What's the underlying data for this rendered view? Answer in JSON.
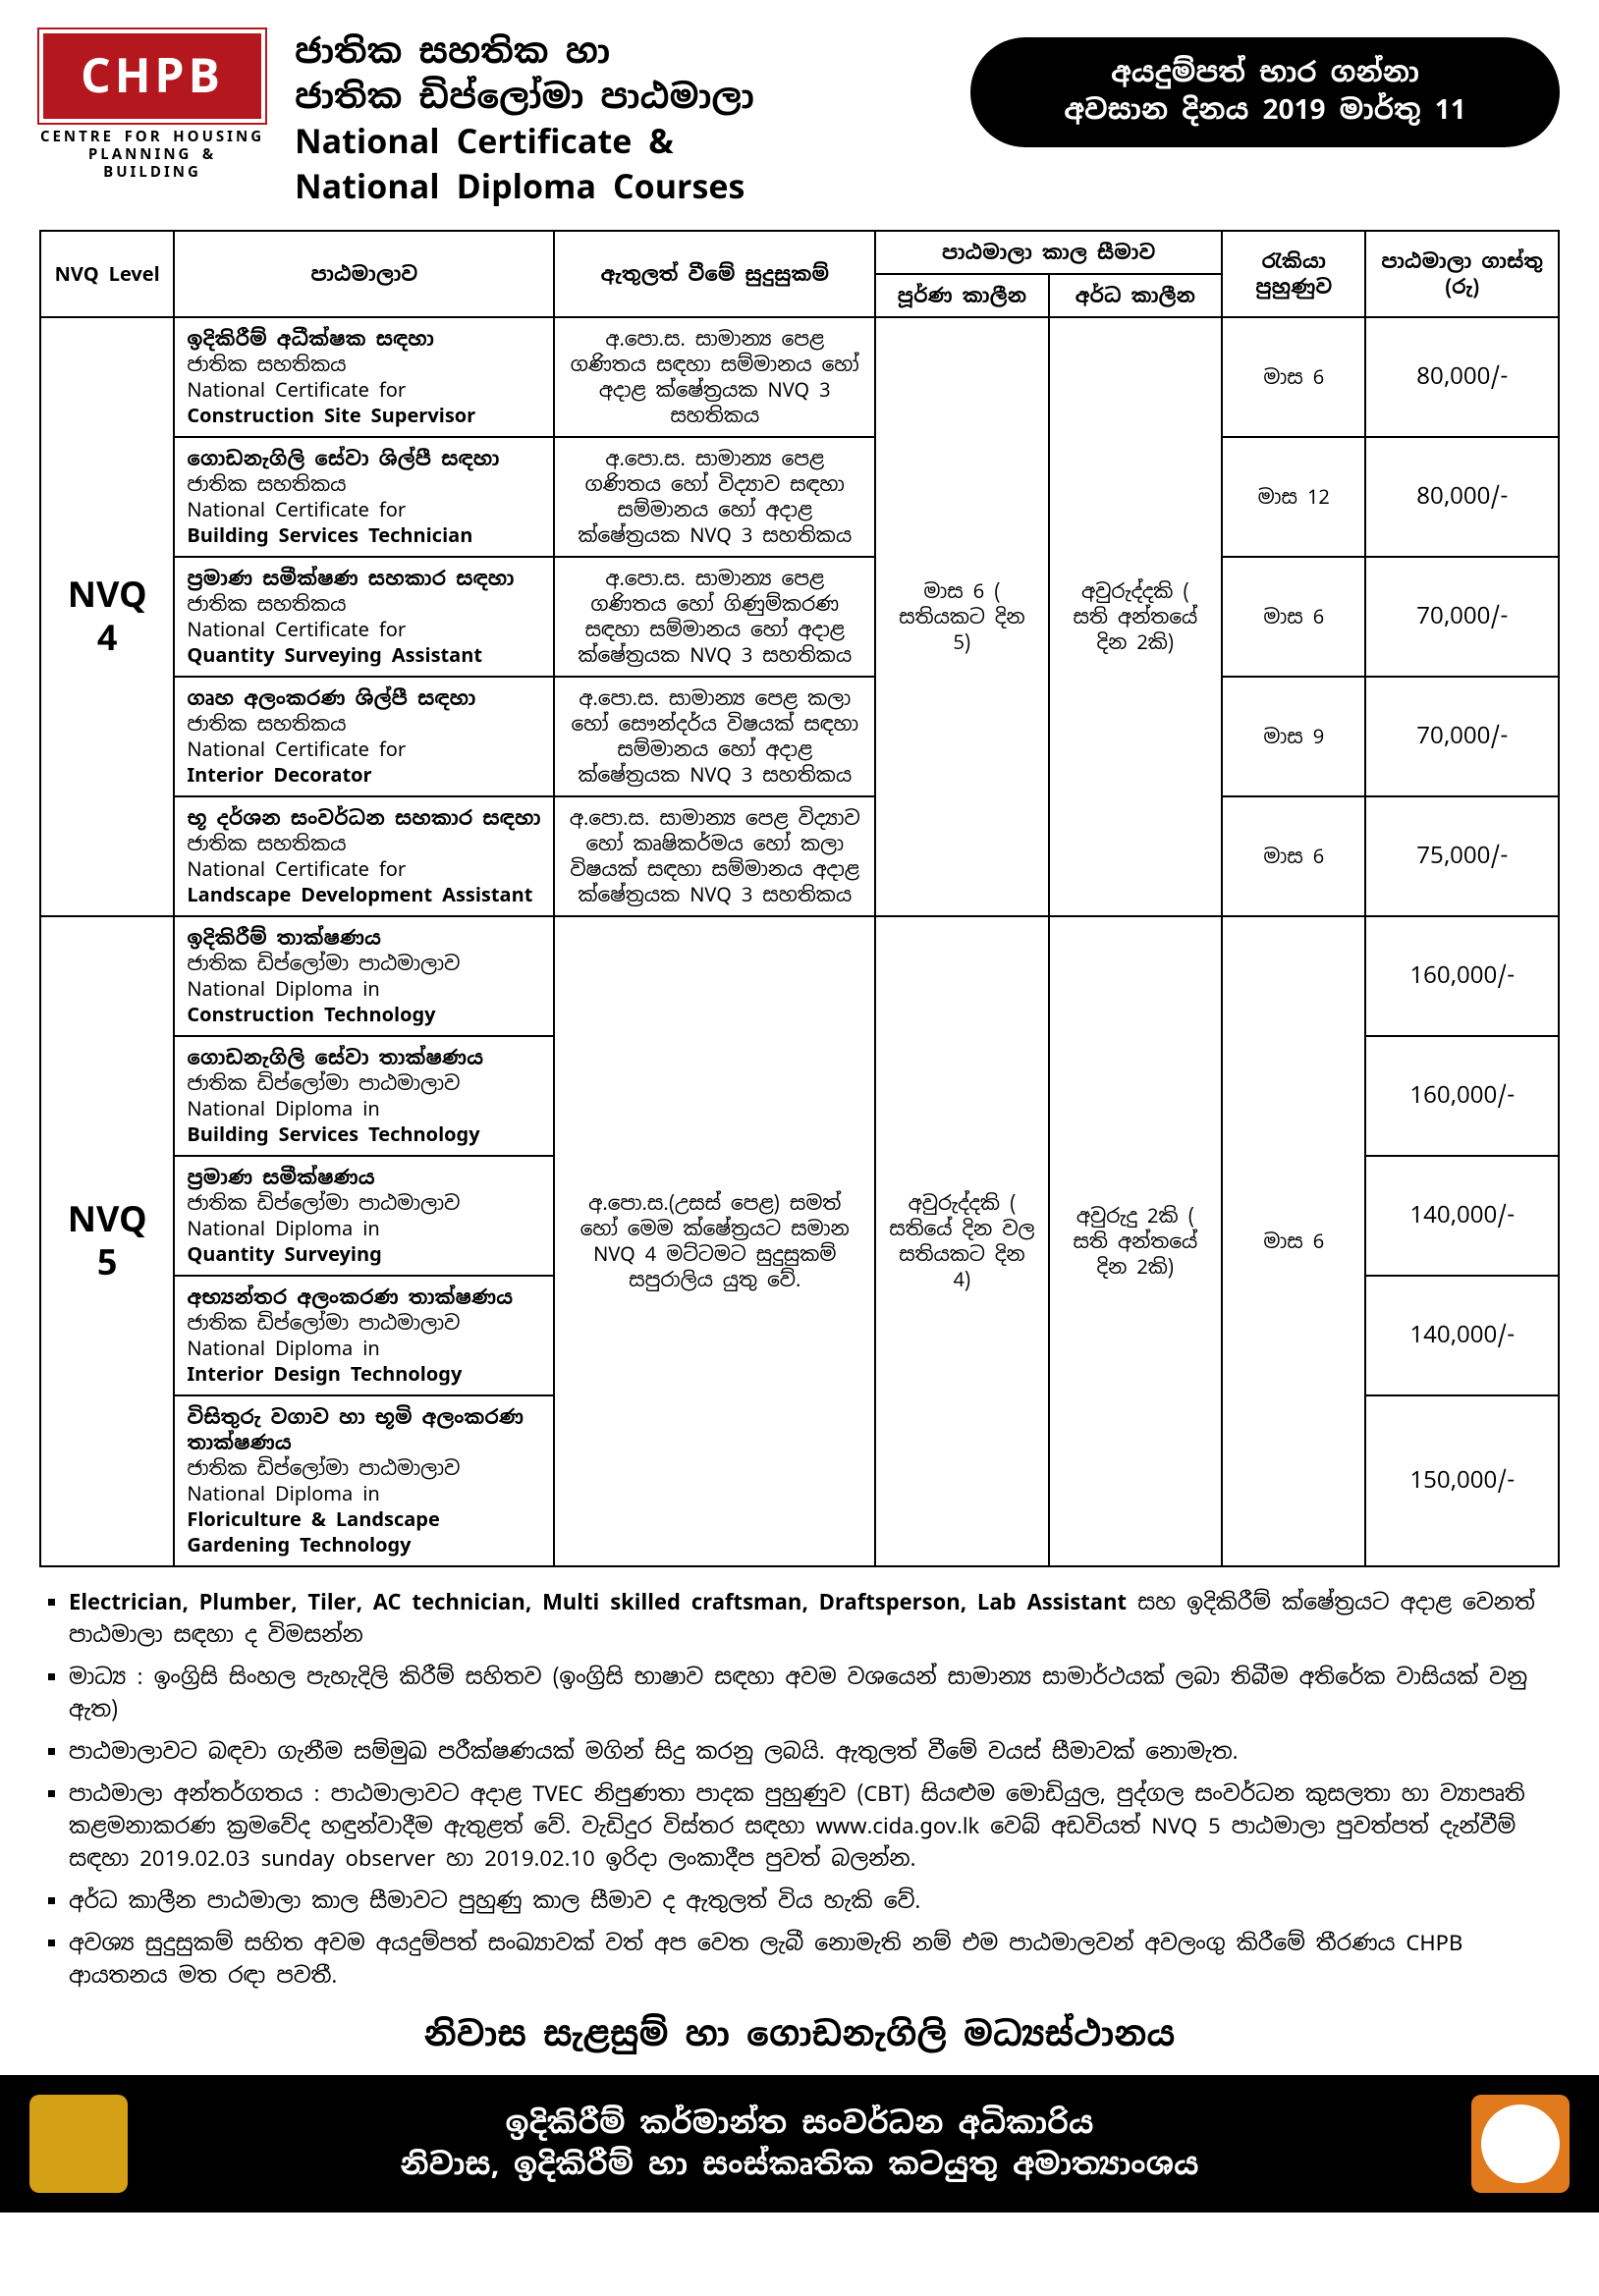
{
  "colors": {
    "logo_bg": "#b4181e",
    "logo_fg": "#ffffff",
    "pill_bg": "#000000",
    "pill_fg": "#ffffff",
    "border": "#000000",
    "footer_bg": "#000000",
    "emblem_bg": "#d4a015",
    "footer_right_bg": "#e07a1c"
  },
  "logo": {
    "text": "CHPB",
    "subtitle_line1": "CENTRE FOR HOUSING",
    "subtitle_line2": "PLANNING & BUILDING"
  },
  "title": {
    "line1": "ජාතික සහතික හා",
    "line2": "ජාතික ඩිප්ලෝමා පාඨමාලා",
    "line3": "National Certificate &",
    "line4": "National Diploma Courses"
  },
  "pill": {
    "line1": "අයදුම්පත් භාර ගන්නා",
    "line2": "අවසාන දිනය 2019 මාර්තු 11"
  },
  "table": {
    "headers": {
      "level": "NVQ Level",
      "course": "පාඨමාලාව",
      "requirements": "ඇතුලත් වීමේ සුදුසුකම්",
      "duration_group": "පාඨමාලා කාල සීමාව",
      "duration_full": "පූර්ණ කාලීන",
      "duration_part": "අර්ධ කාලීන",
      "job_training": "රැකියා පුහුණුව",
      "fee": "පාඨමාලා ගාස්තු (රු)"
    },
    "levels": [
      {
        "label_line1": "NVQ",
        "label_line2": "4",
        "duration_full": "මාස 6 ( සතියකට දින 5)",
        "duration_part": "අවුරුද්දකි ( සති අන්තයේ දින 2කි)",
        "rows": [
          {
            "si_bold": "ඉදිකිරීම් අධීක්ෂක සඳහා",
            "si_reg": "ජාතික සහතිකය",
            "en_reg": "National Certificate for",
            "en_bold": "Construction Site Supervisor",
            "req": "අ.පො.ස. සාමාන්‍ය පෙළ ගණිතය සඳහා සම්මානය හෝ අදාළ ක්ෂේත්‍රයක  NVQ 3 සහතිකය",
            "job": "මාස 6",
            "fee": "80,000/-"
          },
          {
            "si_bold": "ගොඩනැගිලි සේවා ශිල්පී සඳහා",
            "si_reg": "ජාතික සහතිකය",
            "en_reg": "National Certificate for",
            "en_bold": "Building Services Technician",
            "req": "අ.පො.ස. සාමාන්‍ය පෙළ ගණිතය හෝ විද්‍යාව සඳහා සම්මානය හෝ  අදාළ ක්ෂේත්‍රයක  NVQ 3 සහතිකය",
            "job": "මාස 12",
            "fee": "80,000/-"
          },
          {
            "si_bold": "ප්‍රමාණ සමීක්ෂණ  සහකාර  සඳහා",
            "si_reg": "ජාතික සහතිකය",
            "en_reg": "National Certificate for",
            "en_bold": "Quantity Surveying Assistant",
            "req": "අ.පො.ස. සාමාන්‍ය පෙළ ගණිතය හෝ ගිණුම්කරණ සඳහා සම්මානය හෝ  අදාළ ක්ෂේත්‍රයක  NVQ 3 සහතිකය",
            "job": "මාස 6",
            "fee": "70,000/-"
          },
          {
            "si_bold": "ගෘහ අලංකරණ ශිල්පී සඳහා",
            "si_reg": "ජාතික සහතිකය",
            "en_reg": "National Certificate for",
            "en_bold": "Interior Decorator",
            "req": "අ.පො.ස. සාමාන්‍ය පෙළ කලා හෝ සෞන්දර්ය විෂයක් සඳහා සම්මානය හෝ  අදාළ ක්ෂේත්‍රයක  NVQ 3 සහතිකය",
            "job": "මාස 9",
            "fee": "70,000/-"
          },
          {
            "si_bold": "භූ දර්ශන සංවර්ධන සහකාර සඳහා",
            "si_reg": "ජාතික සහතිකය",
            "en_reg": "National Certificate for",
            "en_bold": "Landscape Development Assistant",
            "req": "අ.පො.ස. සාමාන්‍ය පෙළ විද්‍යාව හෝ කෘෂිකර්මය හෝ කලා විෂයක් සඳහා සම්මානය අදාළ ක්ෂේත්‍රයක  NVQ 3 සහතිකය",
            "job": "මාස 6",
            "fee": "75,000/-"
          }
        ]
      },
      {
        "label_line1": "NVQ",
        "label_line2": "5",
        "req_shared": "අ.පො.ස.(උසස් පෙළ) සමත් හෝ මෙම ක්ෂේත්‍රයට සමාන NVQ 4 මට්ටමට සුදුසුකම් සපුරාලිය යුතු වේ.",
        "duration_full": "අවුරුද්දකි ( සතියේ දින වල සතියකට දින 4)",
        "duration_part": "අවුරුදු 2කි ( සති අන්තයේ දින 2කි)",
        "job_shared": "මාස 6",
        "rows": [
          {
            "si_bold": "ඉදිකිරීම් තාක්ෂණය",
            "si_reg": "ජාතික ඩිප්ලෝමා පාඨමාලාව",
            "en_reg": "National Diploma in",
            "en_bold": "Construction Technology",
            "fee": "160,000/-"
          },
          {
            "si_bold": "ගොඩනැගිලි  සේවා තාක්ෂණය",
            "si_reg": "ජාතික ඩිප්ලෝමා පාඨමාලාව",
            "en_reg": "National Diploma in",
            "en_bold": "Building Services Technology",
            "fee": "160,000/-"
          },
          {
            "si_bold": "ප්‍රමාණ සමීක්ෂණය",
            "si_reg": "ජාතික ඩිප්ලෝමා පාඨමාලාව",
            "en_reg": "National Diploma in",
            "en_bold": "Quantity Surveying",
            "fee": "140,000/-"
          },
          {
            "si_bold": "අභ්‍යන්තර අලංකරණ තාක්ෂණය",
            "si_reg": "ජාතික ඩිප්ලෝමා පාඨමාලාව",
            "en_reg": "National Diploma in",
            "en_bold": "Interior Design Technology",
            "fee": "140,000/-"
          },
          {
            "si_bold": "විසිතුරු  වගාව හා භූමි අලංකරණ තාක්ෂණය",
            "si_reg": "ජාතික ඩිප්ලෝමා පාඨමාලාව",
            "en_reg": "National Diploma in",
            "en_bold": "Floriculture & Landscape Gardening Technology",
            "fee": "150,000/-"
          }
        ]
      }
    ]
  },
  "notes": {
    "n1a": "Electrician, Plumber, Tiler, AC technician, Multi skilled craftsman, Draftsperson, Lab Assistant",
    "n1b": " සහ ඉදිකිරීම් ක්ෂේත්‍රයට අදාළ වෙනත් පාඨමාලා සඳහා ද විමසන්න",
    "n2": "මාධ්‍ය : ඉංග්‍රිසි සිංහල පැහැදිලි කිරීම් සහිතව (ඉංග්‍රිසි භාෂාව සඳහා අවම වශයෙන් සාමාන්‍ය සාමාර්ථයක් ලබා තිබීම අතිරේක වාසියක් වනු ඇත)",
    "n3": "පාඨමාලාවට බඳවා ගැනීම සම්මුඛ පරීක්ෂණයක් මගින් සිදු කරනු ලබයි.  ඇතුලත් වීමේ වයස්  සීමාවක්  නොමැත.",
    "n4": "පාඨමාලා අන්තර්ගතය : පාඨමාලාවට අදාළ TVEC නිපුණතා පාදක පුහුණුව (CBT)  සියළුම මොඩියුල, පුද්ගල සංවර්ධන කුසලතා හා ව්‍යාපෘති කළමනාකරණ ක්‍රමවේද හඳුන්වාදීම ඇතුළත් වේ. වැඩිදුර විස්තර සඳහා www.cida.gov.lk වෙබ් අඩවියත් NVQ 5 පාඨමාලා පුවත්පත් දැන්වීම් සඳහා 2019.02.03 sunday observer හා 2019.02.10 ඉරිදා ලංකාදීප පුවත් බලන්න.",
    "n5": "අර්ධ කාලීන පාඨමාලා කාල සීමාවට පුහුණු කාල සීමාව ද  ඇතුලත් විය හැකි වේ.",
    "n6": "අවශ්‍ය සුදුසුකම් සහිත අවම අයදුම්පත් සංඛ්‍යාවක් වත් අප වෙත ලැබී නොමැති නම් එම පාඨමාලවන් අවලංගු කිරීමේ තීරණය CHPB ආයතනය මත රඳා පවතී."
  },
  "center_title": "නිවාස සැළසුම් හා ගොඩනැගිලි මධ්‍යස්ථානය",
  "footer": {
    "line1": "ඉදිකිරීම් කර්මාන්ත සංවර්ධන අධිකාරිය",
    "line2": "නිවාස, ඉදිකිරීම් හා සංස්කෘතික කටයුතු අමාත්‍යාංශය"
  }
}
